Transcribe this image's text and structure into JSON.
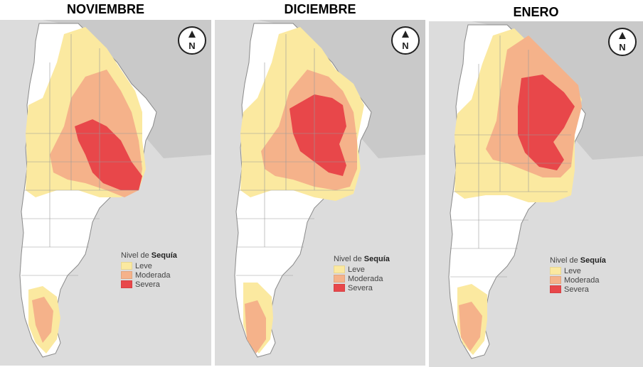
{
  "panels": [
    {
      "title": "NOVIEMBRE"
    },
    {
      "title": "DICIEMBRE"
    },
    {
      "title": "ENERO"
    }
  ],
  "compass": {
    "letter": "N",
    "icon": "north-arrow-icon"
  },
  "legend": {
    "prefix": "Nivel de ",
    "emphasis": "Sequía",
    "items": [
      {
        "label": "Leve",
        "color": "#fbe9a0"
      },
      {
        "label": "Moderada",
        "color": "#f5b28a"
      },
      {
        "label": "Severa",
        "color": "#e8474a"
      }
    ]
  },
  "colors": {
    "ocean": "#dcdcdc",
    "land_outside": "#c9c9c9",
    "no_drought": "#ffffff",
    "border": "#8a8a8a"
  }
}
